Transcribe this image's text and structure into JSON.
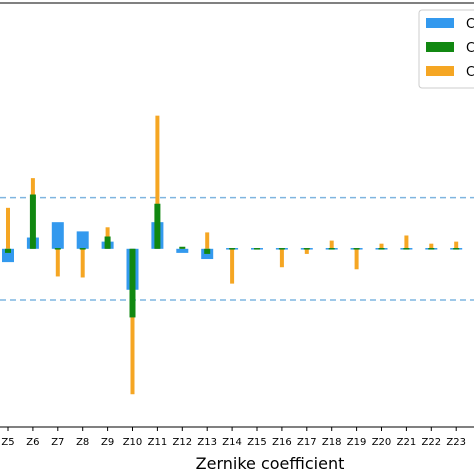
{
  "chart_data": {
    "type": "bar",
    "xlabel": "Zernike coefficient",
    "ylabel": "",
    "title": "",
    "categories": [
      "Z5",
      "Z6",
      "Z7",
      "Z8",
      "Z9",
      "Z10",
      "Z11",
      "Z12",
      "Z13",
      "Z14",
      "Z15",
      "Z16",
      "Z17",
      "Z18",
      "Z19",
      "Z20",
      "Z21",
      "Z22",
      "Z23"
    ],
    "ylim": [
      -0.174,
      0.24
    ],
    "reference_lines": [
      0.05,
      -0.05
    ],
    "grid": false,
    "legend_position": "top-right",
    "series": [
      {
        "name": "C",
        "color": "#3399ee",
        "values": [
          -0.013,
          0.011,
          0.026,
          0.017,
          0.007,
          -0.04,
          0.026,
          -0.004,
          -0.01,
          0,
          0.001,
          -0.001,
          -0.001,
          0,
          -0.001,
          -0.001,
          0,
          -0.001,
          -0.001
        ]
      },
      {
        "name": "C",
        "color": "#118811",
        "values": [
          -0.004,
          0.053,
          0,
          -0.001,
          0.012,
          -0.067,
          0.044,
          0.002,
          -0.005,
          -0.001,
          0,
          0,
          0,
          0,
          0,
          0,
          0,
          0,
          0
        ]
      },
      {
        "name": "C",
        "color": "#f5a623",
        "values": [
          0.04,
          0.069,
          -0.027,
          -0.028,
          0.021,
          -0.142,
          0.13,
          -0.001,
          0.016,
          -0.034,
          0,
          -0.018,
          -0.005,
          0.008,
          -0.02,
          0.005,
          0.013,
          0.005,
          0.007
        ]
      }
    ]
  }
}
